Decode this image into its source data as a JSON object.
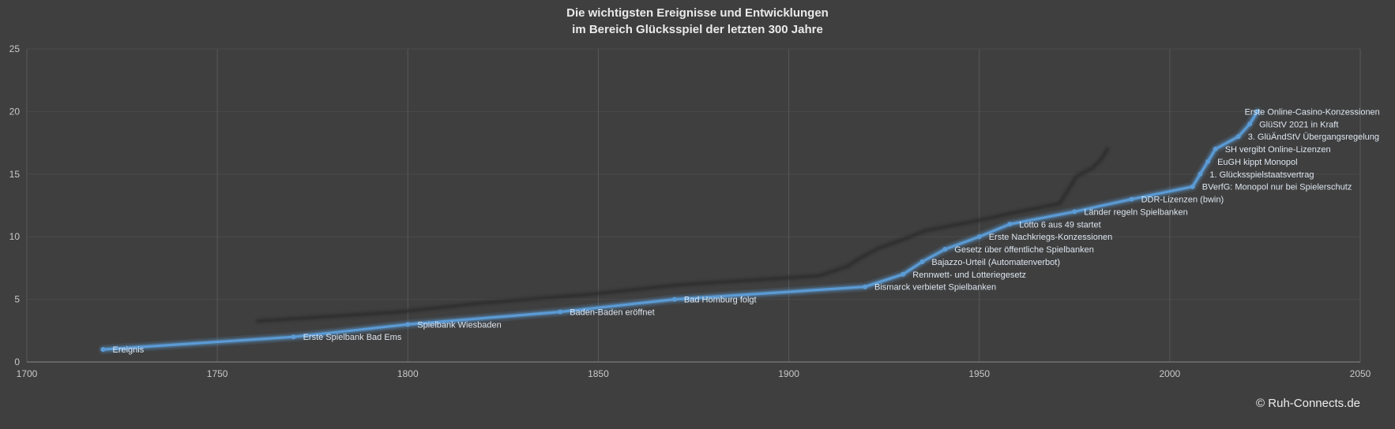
{
  "title": {
    "line1": "Die wichtigsten Ereignisse und Entwicklungen",
    "line2": "im Bereich Glücksspiel der letzten 300 Jahre"
  },
  "watermark": "© Ruh-Connects.de",
  "chart_data": {
    "type": "line",
    "series_name": "Ereignis",
    "xlim": [
      1700,
      2050
    ],
    "ylim": [
      0,
      25
    ],
    "x_ticks": [
      1700,
      1750,
      1800,
      1850,
      1900,
      1950,
      2000,
      2050
    ],
    "y_ticks": [
      0,
      5,
      10,
      15,
      20,
      25
    ],
    "grid": "vertical strong, horizontal faint",
    "legend": "none",
    "colors": {
      "background": "#3f3f3f",
      "line": "#5b9bd5",
      "line_glow": "#5b9bd5",
      "shadow_line": "#2b2b2b",
      "grid_vertical": "#585858",
      "grid_horizontal": "#4a4a4a",
      "axis_line": "#8a8a8a",
      "tick_text": "#c9c9c9",
      "label_text": "#dde6f0",
      "title_text": "#eaeaea"
    },
    "points": [
      {
        "year": 1720,
        "value": 1,
        "label": "Ereignis"
      },
      {
        "year": 1770,
        "value": 2,
        "label": "Erste Spielbank Bad Ems"
      },
      {
        "year": 1800,
        "value": 3,
        "label": "Spielbank Wiesbaden"
      },
      {
        "year": 1840,
        "value": 4,
        "label": "Baden-Baden eröffnet"
      },
      {
        "year": 1870,
        "value": 5,
        "label": "Bad Homburg folgt"
      },
      {
        "year": 1920,
        "value": 6,
        "label": "Bismarck verbietet Spielbanken"
      },
      {
        "year": 1930,
        "value": 7,
        "label": "Rennwett- und Lotteriegesetz"
      },
      {
        "year": 1935,
        "value": 8,
        "label": "Bajazzo-Urteil (Automatenverbot)"
      },
      {
        "year": 1941,
        "value": 9,
        "label": "Gesetz über öffentliche Spielbanken"
      },
      {
        "year": 1950,
        "value": 10,
        "label": "Erste Nachkriegs-Konzessionen"
      },
      {
        "year": 1958,
        "value": 11,
        "label": "Lotto 6 aus 49 startet"
      },
      {
        "year": 1975,
        "value": 12,
        "label": "Länder regeln Spielbanken"
      },
      {
        "year": 1990,
        "value": 13,
        "label": "DDR-Lizenzen (bwin)"
      },
      {
        "year": 2006,
        "value": 14,
        "label": "BVerfG: Monopol nur bei Spielerschutz"
      },
      {
        "year": 2008,
        "value": 15,
        "label": "1. Glücksspielstaatsvertrag"
      },
      {
        "year": 2010,
        "value": 16,
        "label": "EuGH kippt Monopol"
      },
      {
        "year": 2012,
        "value": 17,
        "label": "SH vergibt Online-Lizenzen"
      },
      {
        "year": 2018,
        "value": 18,
        "label": "3. GlüÄndStV Übergangsregelung"
      },
      {
        "year": 2021,
        "value": 19,
        "label": "GlüStV 2021 in Kraft"
      },
      {
        "year": 2023,
        "value": 20,
        "label": "Erste Online-Casino-Konzessionen"
      }
    ]
  }
}
